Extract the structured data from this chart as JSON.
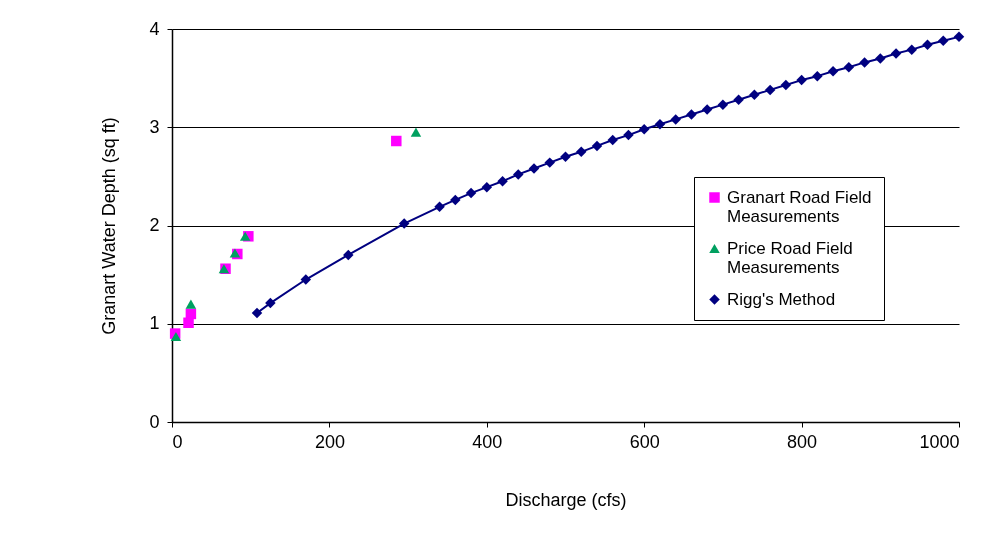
{
  "chart_data": {
    "type": "scatter",
    "xlabel": "Discharge (cfs)",
    "ylabel": "Granart Water Depth (sq ft)",
    "xlim": [
      0,
      1000
    ],
    "xticks": [
      0,
      200,
      400,
      600,
      800,
      1000
    ],
    "ylim": [
      0,
      4
    ],
    "yticks": [
      0,
      1,
      2,
      3,
      4
    ],
    "grid": "y",
    "legend": "right",
    "series": [
      {
        "name": "Granart Road Field Measurements",
        "color": "#ff00ff",
        "marker": "square",
        "x": [
          4,
          21,
          24,
          68,
          83,
          97,
          285
        ],
        "values": [
          0.9,
          1.01,
          1.1,
          1.56,
          1.71,
          1.89,
          2.86
        ]
      },
      {
        "name": "Price Road Field Measurements",
        "color": "#00a060",
        "marker": "triangle",
        "x": [
          5,
          24,
          66,
          80,
          93,
          310
        ],
        "values": [
          0.87,
          1.2,
          1.56,
          1.72,
          1.89,
          2.95
        ]
      },
      {
        "name": "Rigg's Method",
        "type": "line",
        "color": "#000080",
        "marker": "diamond",
        "x": [
          108,
          125,
          170,
          224,
          295,
          340,
          360,
          380,
          400,
          420,
          440,
          460,
          480,
          500,
          520,
          540,
          560,
          580,
          600,
          620,
          640,
          660,
          680,
          700,
          720,
          740,
          760,
          780,
          800,
          820,
          840,
          860,
          880,
          900,
          920,
          940,
          960,
          980,
          1000
        ],
        "values": [
          1.11,
          1.21,
          1.45,
          1.7,
          2.02,
          2.19,
          2.26,
          2.33,
          2.39,
          2.45,
          2.52,
          2.58,
          2.64,
          2.7,
          2.75,
          2.81,
          2.87,
          2.92,
          2.98,
          3.03,
          3.08,
          3.13,
          3.18,
          3.23,
          3.28,
          3.33,
          3.38,
          3.43,
          3.48,
          3.52,
          3.57,
          3.61,
          3.66,
          3.7,
          3.75,
          3.79,
          3.84,
          3.88,
          3.92
        ]
      }
    ]
  }
}
